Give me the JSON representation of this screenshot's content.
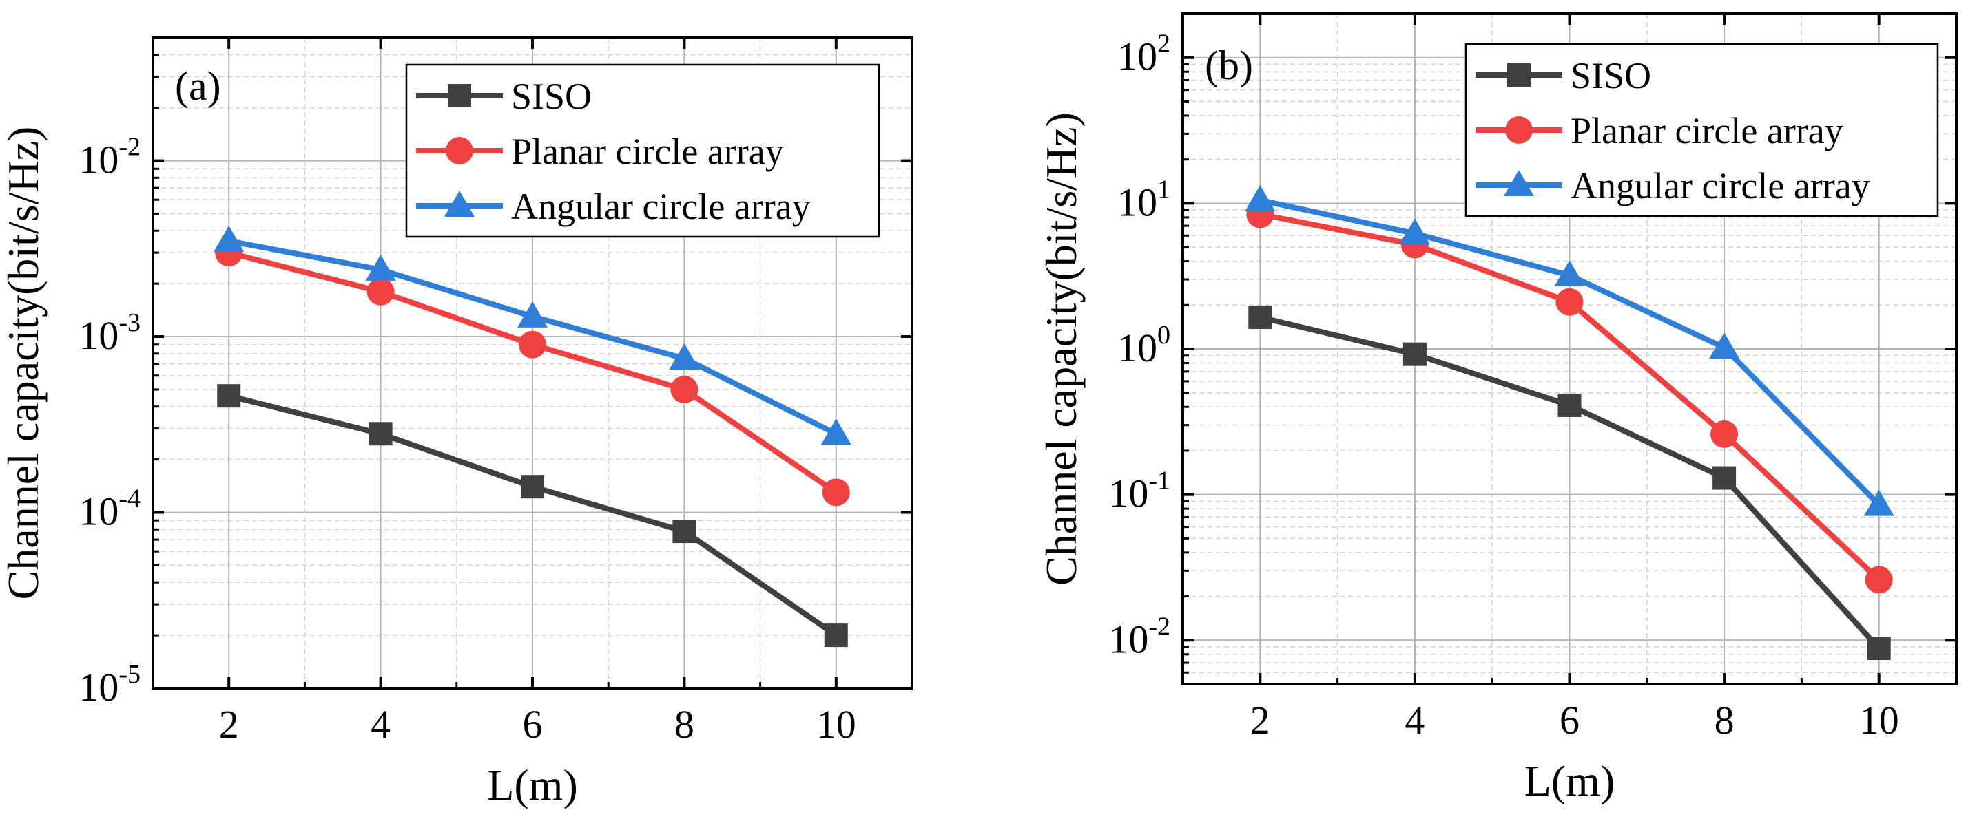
{
  "chart_data": [
    {
      "type": "line",
      "panel_label": "(a)",
      "xlabel": "L(m)",
      "ylabel": "Channel capacity(bit/s/Hz)",
      "yscale": "log",
      "xlim": [
        1,
        11
      ],
      "ylim": [
        1e-05,
        0.05
      ],
      "x": [
        2,
        4,
        6,
        8,
        10
      ],
      "x_ticks": [
        "2",
        "4",
        "6",
        "8",
        "10"
      ],
      "y_ticks": [
        {
          "value": 1e-05,
          "base": "10",
          "exp": "-5"
        },
        {
          "value": 0.0001,
          "base": "10",
          "exp": "-4"
        },
        {
          "value": 0.001,
          "base": "10",
          "exp": "-3"
        },
        {
          "value": 0.01,
          "base": "10",
          "exp": "-2"
        }
      ],
      "grid": true,
      "legend_position": "top-right",
      "series": [
        {
          "name": "SISO",
          "color": "#404040",
          "marker": "square",
          "values": [
            0.00046,
            0.00028,
            0.00014,
            7.8e-05,
            2e-05
          ]
        },
        {
          "name": "Planar circle array",
          "color": "#f04040",
          "marker": "circle",
          "values": [
            0.003,
            0.0018,
            0.0009,
            0.0005,
            0.00013
          ]
        },
        {
          "name": "Angular circle array",
          "color": "#2f7fd8",
          "marker": "triangle",
          "values": [
            0.0035,
            0.0024,
            0.0013,
            0.00075,
            0.00028
          ]
        }
      ]
    },
    {
      "type": "line",
      "panel_label": "(b)",
      "xlabel": "L(m)",
      "ylabel": "Channel capacity(bit/s/Hz)",
      "yscale": "log",
      "xlim": [
        1,
        11
      ],
      "ylim": [
        0.005,
        200
      ],
      "x": [
        2,
        4,
        6,
        8,
        10
      ],
      "x_ticks": [
        "2",
        "4",
        "6",
        "8",
        "10"
      ],
      "y_ticks": [
        {
          "value": 0.01,
          "base": "10",
          "exp": "-2"
        },
        {
          "value": 0.1,
          "base": "10",
          "exp": "-1"
        },
        {
          "value": 1,
          "base": "10",
          "exp": "0"
        },
        {
          "value": 10,
          "base": "10",
          "exp": "1"
        },
        {
          "value": 100,
          "base": "10",
          "exp": "2"
        }
      ],
      "grid": true,
      "legend_position": "top-right",
      "series": [
        {
          "name": "SISO",
          "color": "#404040",
          "marker": "square",
          "values": [
            1.65,
            0.92,
            0.41,
            0.13,
            0.0088
          ]
        },
        {
          "name": "Planar circle array",
          "color": "#f04040",
          "marker": "circle",
          "values": [
            8.4,
            5.2,
            2.1,
            0.26,
            0.026
          ]
        },
        {
          "name": "Angular circle array",
          "color": "#2f7fd8",
          "marker": "triangle",
          "values": [
            10.5,
            6.2,
            3.2,
            1.02,
            0.085
          ]
        }
      ]
    }
  ]
}
